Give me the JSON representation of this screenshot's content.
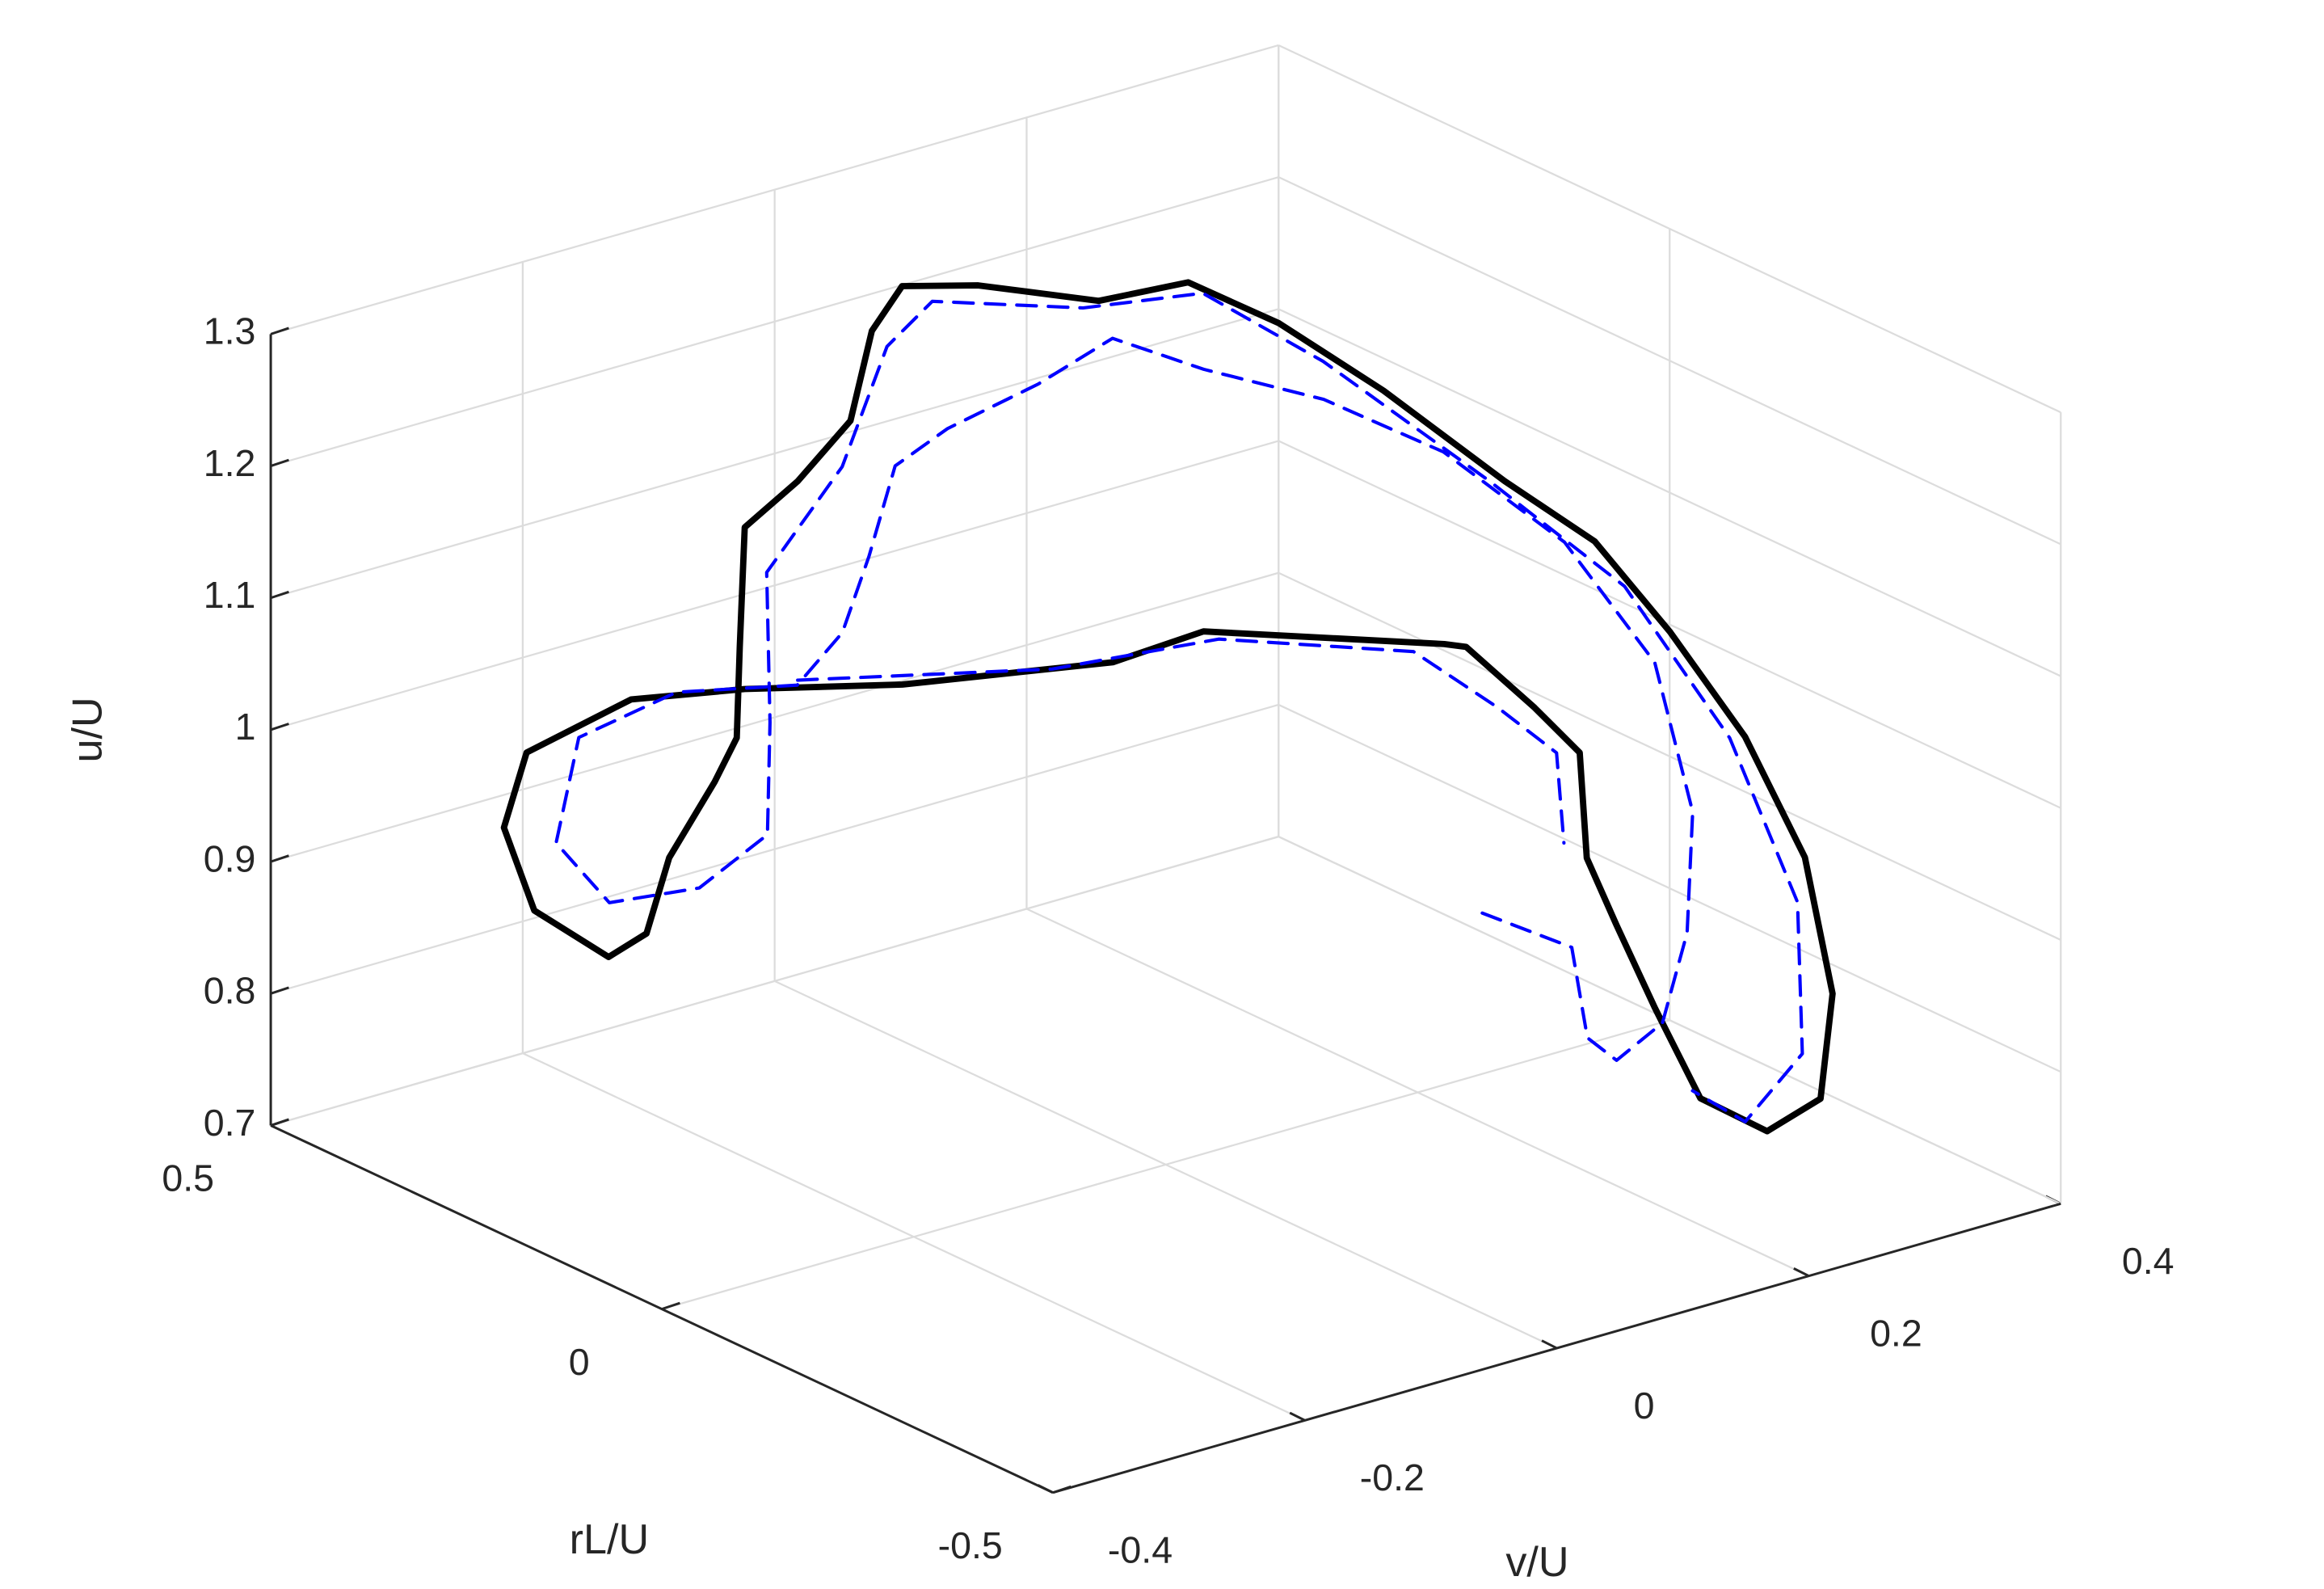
{
  "chart_data": {
    "type": "line3d",
    "xlabel": "v/U",
    "ylabel": "rL/U",
    "zlabel": "u/U",
    "xlim": [
      -0.4,
      0.4
    ],
    "ylim": [
      -0.5,
      0.5
    ],
    "zlim": [
      0.7,
      1.3
    ],
    "xticks": [
      -0.4,
      -0.2,
      0,
      0.2,
      0.4
    ],
    "yticks": [
      -0.5,
      0,
      0.5
    ],
    "zticks": [
      0.7,
      0.8,
      0.9,
      1,
      1.1,
      1.2,
      1.3
    ],
    "grid": true,
    "series": [
      {
        "color": "#000000",
        "linestyle": "solid",
        "x": [
          0.159,
          0.03,
          -0.011,
          -0.116,
          -0.179,
          -0.207,
          -0.259,
          -0.277,
          -0.284,
          -0.256,
          -0.257,
          -0.27,
          -0.265,
          -0.266,
          -0.245,
          -0.21,
          -0.137,
          -0.064,
          -0.016,
          0.039,
          0.087,
          0.133,
          0.173,
          0.183,
          0.204,
          0.238,
          0.266,
          0.276,
          0.286,
          0.29,
          0.281,
          0.259,
          0.229,
          0.207,
          0.202,
          0.184,
          0.179,
          0.192,
          0.181,
          0.164,
          0.159
        ],
        "y": [
          -0.1,
          0,
          0.05,
          0.15,
          0.25,
          0.35,
          0.4,
          0.4,
          0.35,
          0.3,
          0.25,
          0.2,
          0.15,
          0.12,
          0.15,
          0.2,
          0.25,
          0.3,
          0.35,
          0.4,
          0.38,
          0.3,
          0.25,
          0.15,
          0.05,
          -0.05,
          -0.12,
          -0.2,
          -0.28,
          -0.35,
          -0.4,
          -0.42,
          -0.4,
          -0.35,
          -0.3,
          -0.28,
          -0.25,
          -0.22,
          -0.18,
          -0.12,
          -0.1
        ],
        "z": [
          1.079,
          1.096,
          1.07,
          1.054,
          1.04,
          1.012,
          0.972,
          0.92,
          0.873,
          0.844,
          0.876,
          0.951,
          1.021,
          1.063,
          1.118,
          1.185,
          1.186,
          1.198,
          1.239,
          1.244,
          1.237,
          1.235,
          1.252,
          1.246,
          1.217,
          1.167,
          1.133,
          1.084,
          1.024,
          0.951,
          0.864,
          0.796,
          0.774,
          0.791,
          0.847,
          0.909,
          0.953,
          1.021,
          1.047,
          1.081,
          1.079
        ]
      },
      {
        "color": "#0000ff",
        "linestyle": "dashed",
        "x": [
          0.096,
          0.136,
          0.136,
          0.153,
          0.208,
          0.24,
          0.263,
          0.264,
          0.242,
          0.208,
          0.175,
          0.142,
          0.113,
          0.085,
          0.013,
          -0.041,
          -0.099,
          -0.145,
          -0.156,
          -0.202,
          -0.23,
          -0.248,
          -0.243,
          -0.215,
          -0.192,
          -0.221,
          -0.205,
          -0.083,
          -0.004,
          0.063,
          0.133,
          0.166,
          0.187,
          0.232,
          0.271,
          0.28,
          0.278,
          0.257,
          0.224,
          0.207,
          null,
          -0.199,
          -0.059,
          0.042,
          0.147,
          0.17,
          0.186,
          0.167
        ],
        "y": [
          -0.25,
          -0.3,
          -0.32,
          -0.33,
          -0.3,
          -0.28,
          -0.25,
          -0.2,
          -0.12,
          -0.02,
          0.08,
          0.18,
          0.25,
          0.3,
          0.3,
          0.28,
          0.22,
          0.18,
          0.22,
          0.3,
          0.38,
          0.38,
          0.32,
          0.25,
          0.2,
          0.15,
          0.18,
          0.28,
          0.35,
          0.4,
          0.32,
          0.22,
          0.1,
          -0.04,
          -0.15,
          -0.27,
          -0.36,
          -0.4,
          -0.38,
          -0.34,
          null,
          0.15,
          0.05,
          0,
          -0.08,
          -0.15,
          -0.2,
          -0.24
        ],
        "z": [
          0.934,
          0.911,
          0.848,
          0.829,
          0.834,
          0.888,
          0.965,
          1.064,
          1.139,
          1.189,
          1.21,
          1.214,
          1.226,
          1.185,
          1.171,
          1.163,
          1.127,
          1.093,
          1.045,
          1.03,
          0.981,
          0.906,
          0.876,
          0.899,
          0.947,
          1.054,
          1.155,
          1.174,
          1.224,
          1.226,
          1.224,
          1.254,
          1.23,
          1.166,
          1.106,
          1.022,
          0.923,
          0.825,
          0.777,
          0.794,
          null,
          1.08,
          1.078,
          1.087,
          1.071,
          1.042,
          1.017,
          0.965
        ]
      }
    ]
  }
}
